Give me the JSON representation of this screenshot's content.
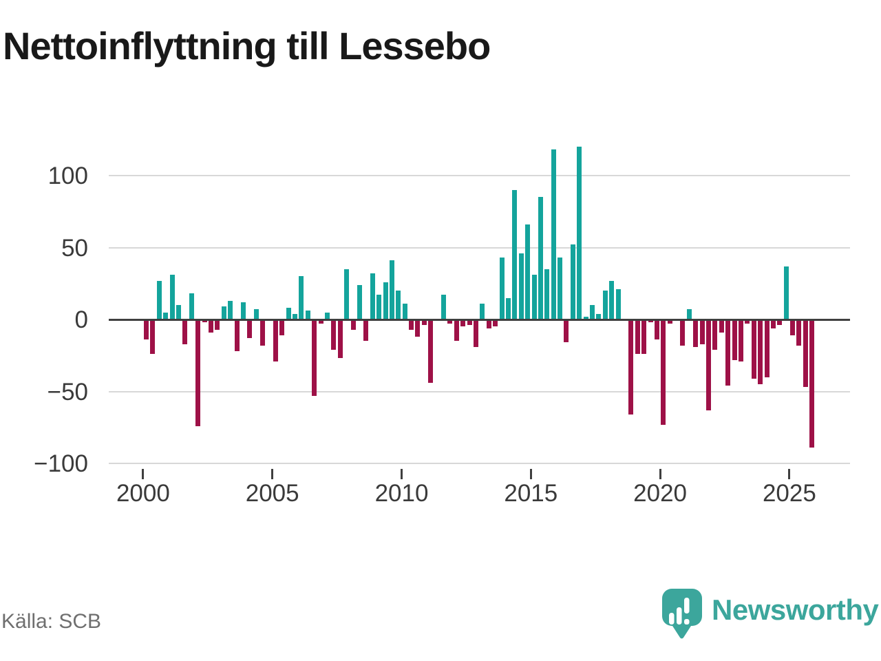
{
  "title": "Nettoinflyttning till Lessebo",
  "source": "Källa: SCB",
  "logo": {
    "text": "Newsworthy",
    "color": "#3ca69c",
    "bubble_icon": "bar-chart-exclamation"
  },
  "chart_data": {
    "type": "bar",
    "title": "Nettoinflyttning till Lessebo",
    "frequency": "quarterly",
    "x_axis": {
      "tick_labels": [
        "2000",
        "2005",
        "2010",
        "2015",
        "2020",
        "2025"
      ],
      "tick_years": [
        2000,
        2005,
        2010,
        2015,
        2020,
        2025
      ]
    },
    "y_axis": {
      "ticks": [
        {
          "value": 100,
          "label": "100"
        },
        {
          "value": 50,
          "label": "50"
        },
        {
          "value": 0,
          "label": "0"
        },
        {
          "value": -50,
          "label": "−50"
        },
        {
          "value": -100,
          "label": "−100"
        }
      ],
      "range": [
        -100,
        125
      ],
      "grid": true
    },
    "legend": null,
    "series": [
      {
        "year": 2000,
        "values": [
          -14,
          -24,
          27,
          5
        ]
      },
      {
        "year": 2001,
        "values": [
          31,
          10,
          -17,
          18
        ]
      },
      {
        "year": 2002,
        "values": [
          -74,
          -2,
          -9,
          -7
        ]
      },
      {
        "year": 2003,
        "values": [
          9,
          13,
          -22,
          12
        ]
      },
      {
        "year": 2004,
        "values": [
          -13,
          7,
          -18,
          0
        ]
      },
      {
        "year": 2005,
        "values": [
          -29,
          -11,
          8,
          4
        ]
      },
      {
        "year": 2006,
        "values": [
          30,
          6,
          -53,
          -3
        ]
      },
      {
        "year": 2007,
        "values": [
          5,
          -21,
          -27,
          35
        ]
      },
      {
        "year": 2008,
        "values": [
          -7,
          24,
          -15,
          32
        ]
      },
      {
        "year": 2009,
        "values": [
          17,
          26,
          41,
          20
        ]
      },
      {
        "year": 2010,
        "values": [
          11,
          -7,
          -12,
          -4
        ]
      },
      {
        "year": 2011,
        "values": [
          -44,
          0,
          17,
          -3
        ]
      },
      {
        "year": 2012,
        "values": [
          -15,
          -5,
          -4,
          -19
        ]
      },
      {
        "year": 2013,
        "values": [
          11,
          -6,
          -5,
          43
        ]
      },
      {
        "year": 2014,
        "values": [
          15,
          90,
          46,
          66
        ]
      },
      {
        "year": 2015,
        "values": [
          31,
          85,
          35,
          118
        ]
      },
      {
        "year": 2016,
        "values": [
          43,
          -16,
          52,
          120
        ]
      },
      {
        "year": 2017,
        "values": [
          2,
          10,
          4,
          20
        ]
      },
      {
        "year": 2018,
        "values": [
          27,
          21,
          0,
          -66
        ]
      },
      {
        "year": 2019,
        "values": [
          -24,
          -24,
          -2,
          -14
        ]
      },
      {
        "year": 2020,
        "values": [
          -73,
          -3,
          0,
          -18
        ]
      },
      {
        "year": 2021,
        "values": [
          7,
          -19,
          -17,
          -63
        ]
      },
      {
        "year": 2022,
        "values": [
          -21,
          -9,
          -46,
          -28
        ]
      },
      {
        "year": 2023,
        "values": [
          -29,
          -3,
          -41,
          -45
        ]
      },
      {
        "year": 2024,
        "values": [
          -40,
          -6,
          -4,
          37
        ]
      },
      {
        "year": 2025,
        "values": [
          -11,
          -18,
          -47,
          -89
        ]
      }
    ],
    "colors": {
      "positive": "#14a49c",
      "negative": "#9e1147",
      "gridline": "#d8d8d8",
      "zero_line": "#3f3f3f",
      "axis_text": "#3a3a3a"
    }
  }
}
